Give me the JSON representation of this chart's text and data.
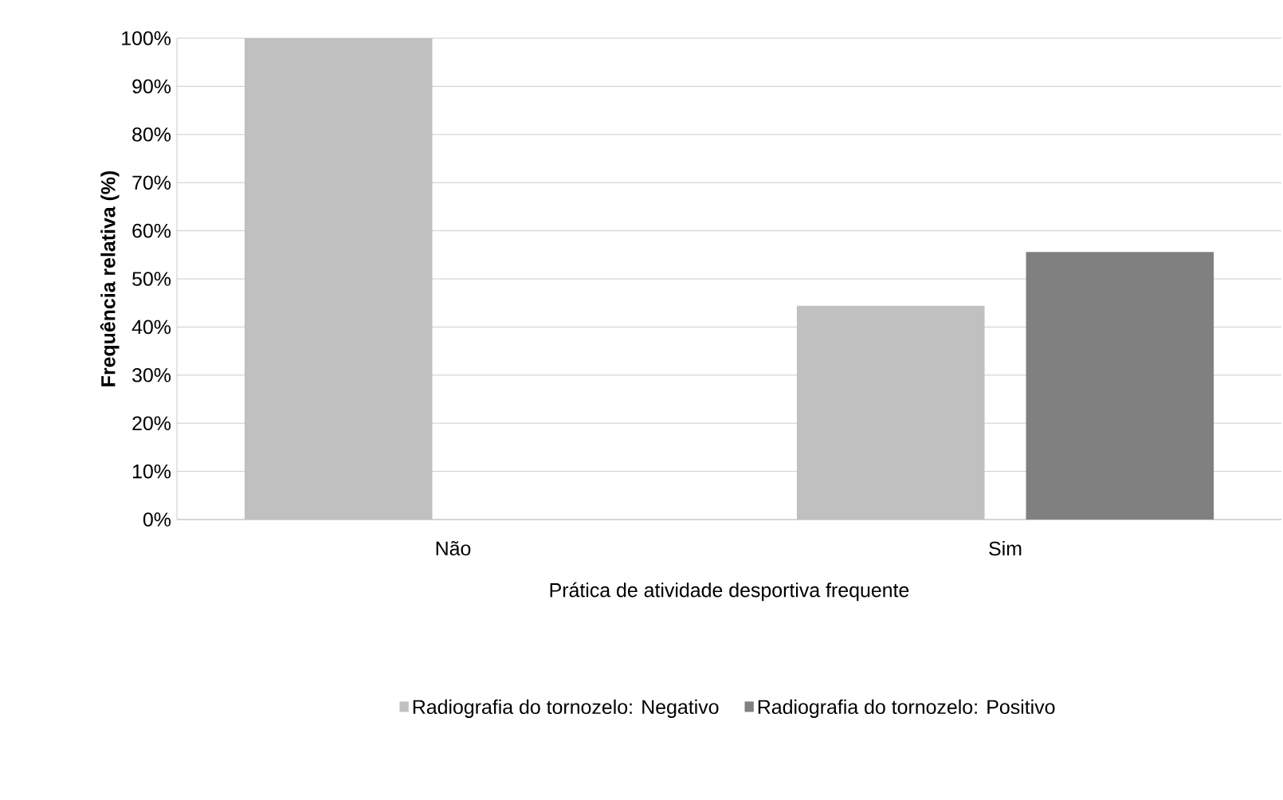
{
  "chart_data": {
    "type": "bar",
    "xlabel": "Prática de atividade desportiva frequente",
    "ylabel": "Frequência relativa (%)",
    "categories": [
      "Não",
      "Sim"
    ],
    "series": [
      {
        "name": "Radiografia do tornozelo: Negativo",
        "color": "#c0c0c0",
        "values": [
          100,
          44.4
        ]
      },
      {
        "name": "Radiografia do tornozelo: Positivo",
        "color": "#808080",
        "values": [
          0,
          55.6
        ]
      }
    ],
    "ylim": [
      0,
      100
    ],
    "yticks": [
      {
        "value": 0,
        "label": "0%"
      },
      {
        "value": 10,
        "label": "10%"
      },
      {
        "value": 20,
        "label": "20%"
      },
      {
        "value": 30,
        "label": "30%"
      },
      {
        "value": 40,
        "label": "40%"
      },
      {
        "value": 50,
        "label": "50%"
      },
      {
        "value": 60,
        "label": "60%"
      },
      {
        "value": 70,
        "label": "70%"
      },
      {
        "value": 80,
        "label": "80%"
      },
      {
        "value": 90,
        "label": "90%"
      },
      {
        "value": 100,
        "label": "100%"
      }
    ],
    "grid": "y",
    "legend": "bottom"
  }
}
